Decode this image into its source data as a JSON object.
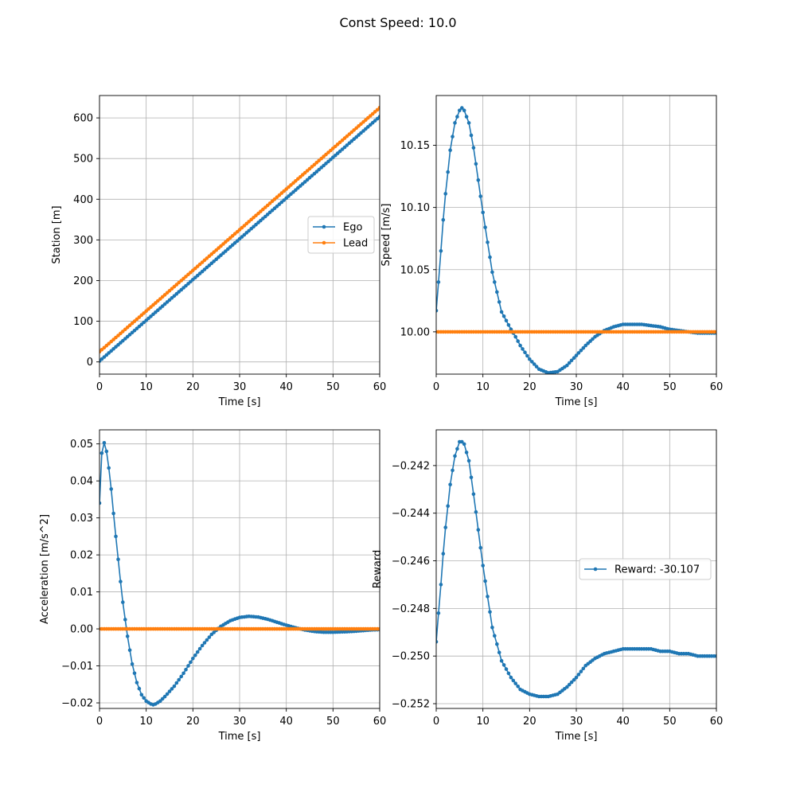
{
  "figure": {
    "title": "Const Speed: 10.0"
  },
  "colors": {
    "ego": "#1f77b4",
    "lead": "#ff7f0e",
    "grid": "#b0b0b0"
  },
  "chart_data": [
    {
      "type": "line",
      "xlabel": "Time [s]",
      "ylabel": "Station [m]",
      "xlim": [
        0,
        60
      ],
      "ylim": [
        -30,
        655
      ],
      "xticks": [
        0,
        10,
        20,
        30,
        40,
        50,
        60
      ],
      "yticks": [
        0,
        100,
        200,
        300,
        400,
        500,
        600
      ],
      "ytick_labels": [
        "0",
        "100",
        "200",
        "300",
        "400",
        "500",
        "600"
      ],
      "grid": true,
      "legend": "center-right",
      "series": [
        {
          "name": "Ego",
          "color": "#1f77b4",
          "marker": "dot",
          "x": [
            0,
            60
          ],
          "y": [
            2,
            603
          ]
        },
        {
          "name": "Lead",
          "color": "#ff7f0e",
          "marker": "dot",
          "x": [
            0,
            60
          ],
          "y": [
            25,
            625
          ]
        }
      ]
    },
    {
      "type": "line",
      "xlabel": "Time [s]",
      "ylabel": "Speed [m/s]",
      "xlim": [
        0,
        60
      ],
      "ylim": [
        9.966,
        10.19
      ],
      "xticks": [
        0,
        10,
        20,
        30,
        40,
        50,
        60
      ],
      "yticks": [
        10.0,
        10.05,
        10.1,
        10.15
      ],
      "ytick_labels": [
        "10.00",
        "10.05",
        "10.10",
        "10.15"
      ],
      "grid": true,
      "series": [
        {
          "name": "Ego",
          "color": "#1f77b4",
          "marker": "dot",
          "x": [
            0,
            0.5,
            1,
            1.5,
            2,
            3,
            4,
            5,
            5.5,
            6,
            7,
            8,
            10,
            12,
            14,
            16,
            17,
            18,
            20,
            22,
            24,
            26,
            28,
            30,
            32,
            34,
            36,
            38,
            40,
            42,
            44,
            46,
            48,
            50,
            52,
            54,
            56,
            58,
            60
          ],
          "y": [
            10.017,
            10.04,
            10.065,
            10.09,
            10.111,
            10.146,
            10.168,
            10.178,
            10.18,
            10.178,
            10.168,
            10.148,
            10.096,
            10.048,
            10.016,
            10.002,
            9.996,
            9.989,
            9.978,
            9.97,
            9.967,
            9.968,
            9.973,
            9.981,
            9.989,
            9.996,
            10.001,
            10.004,
            10.006,
            10.006,
            10.006,
            10.005,
            10.004,
            10.002,
            10.001,
            10.0,
            9.999,
            9.999,
            9.999
          ]
        },
        {
          "name": "Lead",
          "color": "#ff7f0e",
          "marker": "dot",
          "x": [
            0,
            60
          ],
          "y": [
            10.0,
            10.0
          ]
        }
      ]
    },
    {
      "type": "line",
      "xlabel": "Time [s]",
      "ylabel": "Acceleration [m/s^2]",
      "xlim": [
        0,
        60
      ],
      "ylim": [
        -0.0215,
        0.0538
      ],
      "xticks": [
        0,
        10,
        20,
        30,
        40,
        50,
        60
      ],
      "yticks": [
        -0.02,
        -0.01,
        0.0,
        0.01,
        0.02,
        0.03,
        0.04,
        0.05
      ],
      "ytick_labels": [
        "−0.02",
        "−0.01",
        "0.00",
        "0.01",
        "0.02",
        "0.03",
        "0.04",
        "0.05"
      ],
      "grid": true,
      "series": [
        {
          "name": "Ego",
          "color": "#1f77b4",
          "marker": "dot",
          "x": [
            0,
            0.5,
            1,
            1.5,
            2,
            2.5,
            3,
            3.5,
            4,
            4.5,
            5,
            5.5,
            6,
            7,
            8,
            9,
            10,
            11,
            11.5,
            12,
            13,
            14,
            16,
            18,
            20,
            22,
            24,
            26,
            28,
            30,
            32,
            34,
            36,
            38,
            40,
            42,
            44,
            46,
            48,
            50,
            52,
            54,
            56,
            58,
            60
          ],
          "y": [
            0.034,
            0.0475,
            0.0503,
            0.048,
            0.0435,
            0.0378,
            0.0312,
            0.025,
            0.0188,
            0.0128,
            0.0072,
            0.0025,
            -0.002,
            -0.0095,
            -0.0145,
            -0.0178,
            -0.0195,
            -0.0203,
            -0.0205,
            -0.0203,
            -0.0195,
            -0.0183,
            -0.0155,
            -0.012,
            -0.008,
            -0.0045,
            -0.0015,
            0.0007,
            0.0022,
            0.0031,
            0.0034,
            0.0032,
            0.0026,
            0.0018,
            0.001,
            0.0003,
            -0.0003,
            -0.0007,
            -0.0009,
            -0.0009,
            -0.0008,
            -0.0007,
            -0.0005,
            -0.0003,
            -0.0002
          ]
        },
        {
          "name": "Lead",
          "color": "#ff7f0e",
          "marker": "dot",
          "x": [
            0,
            60
          ],
          "y": [
            0.0,
            0.0
          ]
        }
      ]
    },
    {
      "type": "line",
      "xlabel": "Time [s]",
      "ylabel": "Reward",
      "xlim": [
        0,
        60
      ],
      "ylim": [
        -0.2522,
        -0.2405
      ],
      "xticks": [
        0,
        10,
        20,
        30,
        40,
        50,
        60
      ],
      "yticks": [
        -0.252,
        -0.25,
        -0.248,
        -0.246,
        -0.244,
        -0.242
      ],
      "ytick_labels": [
        "−0.252",
        "−0.250",
        "−0.248",
        "−0.246",
        "−0.244",
        "−0.242"
      ],
      "grid": true,
      "legend": "center-right",
      "series": [
        {
          "name": "Reward: -30.107",
          "color": "#1f77b4",
          "marker": "dot",
          "x": [
            0,
            0.5,
            1,
            1.5,
            2,
            3,
            4,
            5,
            5.5,
            6,
            7,
            8,
            10,
            12,
            14,
            16,
            18,
            20,
            22,
            24,
            26,
            28,
            30,
            32,
            34,
            36,
            38,
            40,
            42,
            44,
            46,
            48,
            50,
            52,
            54,
            56,
            58,
            60
          ],
          "y": [
            -0.2494,
            -0.2482,
            -0.247,
            -0.2457,
            -0.2446,
            -0.2428,
            -0.2416,
            -0.241,
            -0.241,
            -0.2411,
            -0.2418,
            -0.2432,
            -0.2462,
            -0.2488,
            -0.2502,
            -0.2509,
            -0.2514,
            -0.2516,
            -0.2517,
            -0.2517,
            -0.2516,
            -0.2513,
            -0.2509,
            -0.2504,
            -0.2501,
            -0.2499,
            -0.2498,
            -0.2497,
            -0.2497,
            -0.2497,
            -0.2497,
            -0.2498,
            -0.2498,
            -0.2499,
            -0.2499,
            -0.25,
            -0.25,
            -0.25
          ]
        }
      ]
    }
  ]
}
